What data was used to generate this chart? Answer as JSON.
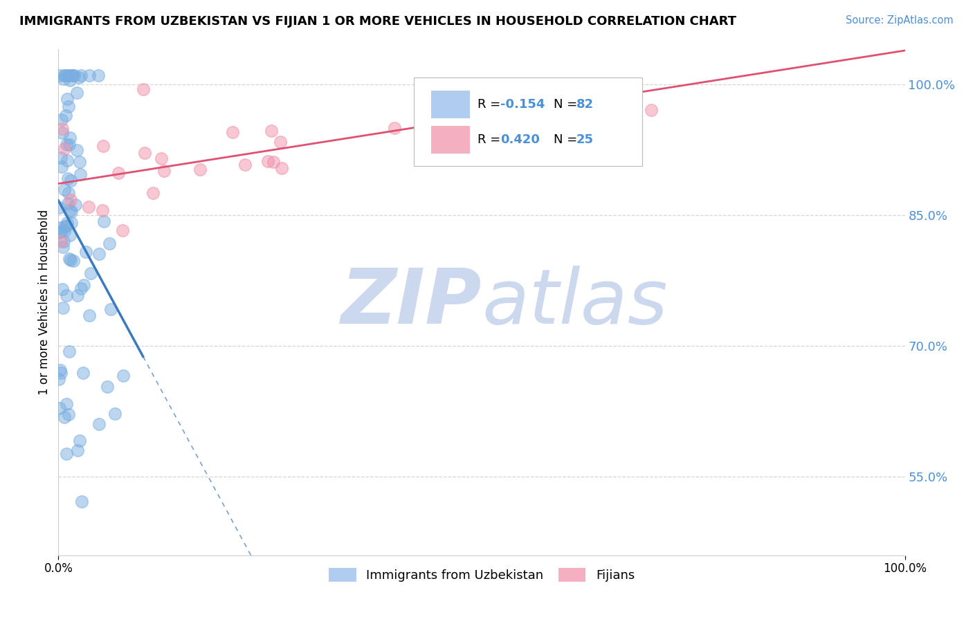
{
  "title": "IMMIGRANTS FROM UZBEKISTAN VS FIJIAN 1 OR MORE VEHICLES IN HOUSEHOLD CORRELATION CHART",
  "source_text": "Source: ZipAtlas.com",
  "ylabel": "1 or more Vehicles in Household",
  "xlim": [
    0,
    100
  ],
  "ylim": [
    46,
    104
  ],
  "ytick_values": [
    55,
    70,
    85,
    100
  ],
  "xtick_values": [
    0,
    100
  ],
  "xtick_labels": [
    "0.0%",
    "100.0%"
  ],
  "blue_R": -0.154,
  "blue_N": 82,
  "pink_R": 0.42,
  "pink_N": 25,
  "blue_line_color": "#3a7abf",
  "pink_line_color": "#e05070",
  "blue_scatter_color": "#7aaee0",
  "pink_scatter_color": "#f090a8",
  "scatter_alpha": 0.5,
  "scatter_size": 160,
  "background_color": "#ffffff",
  "grid_color": "#cccccc",
  "watermark_zip": "ZIP",
  "watermark_atlas": "atlas",
  "watermark_color": "#ccd8ee",
  "title_fontsize": 13,
  "axis_label_color": "#4a90d9",
  "ytick_color": "#4a90d9"
}
